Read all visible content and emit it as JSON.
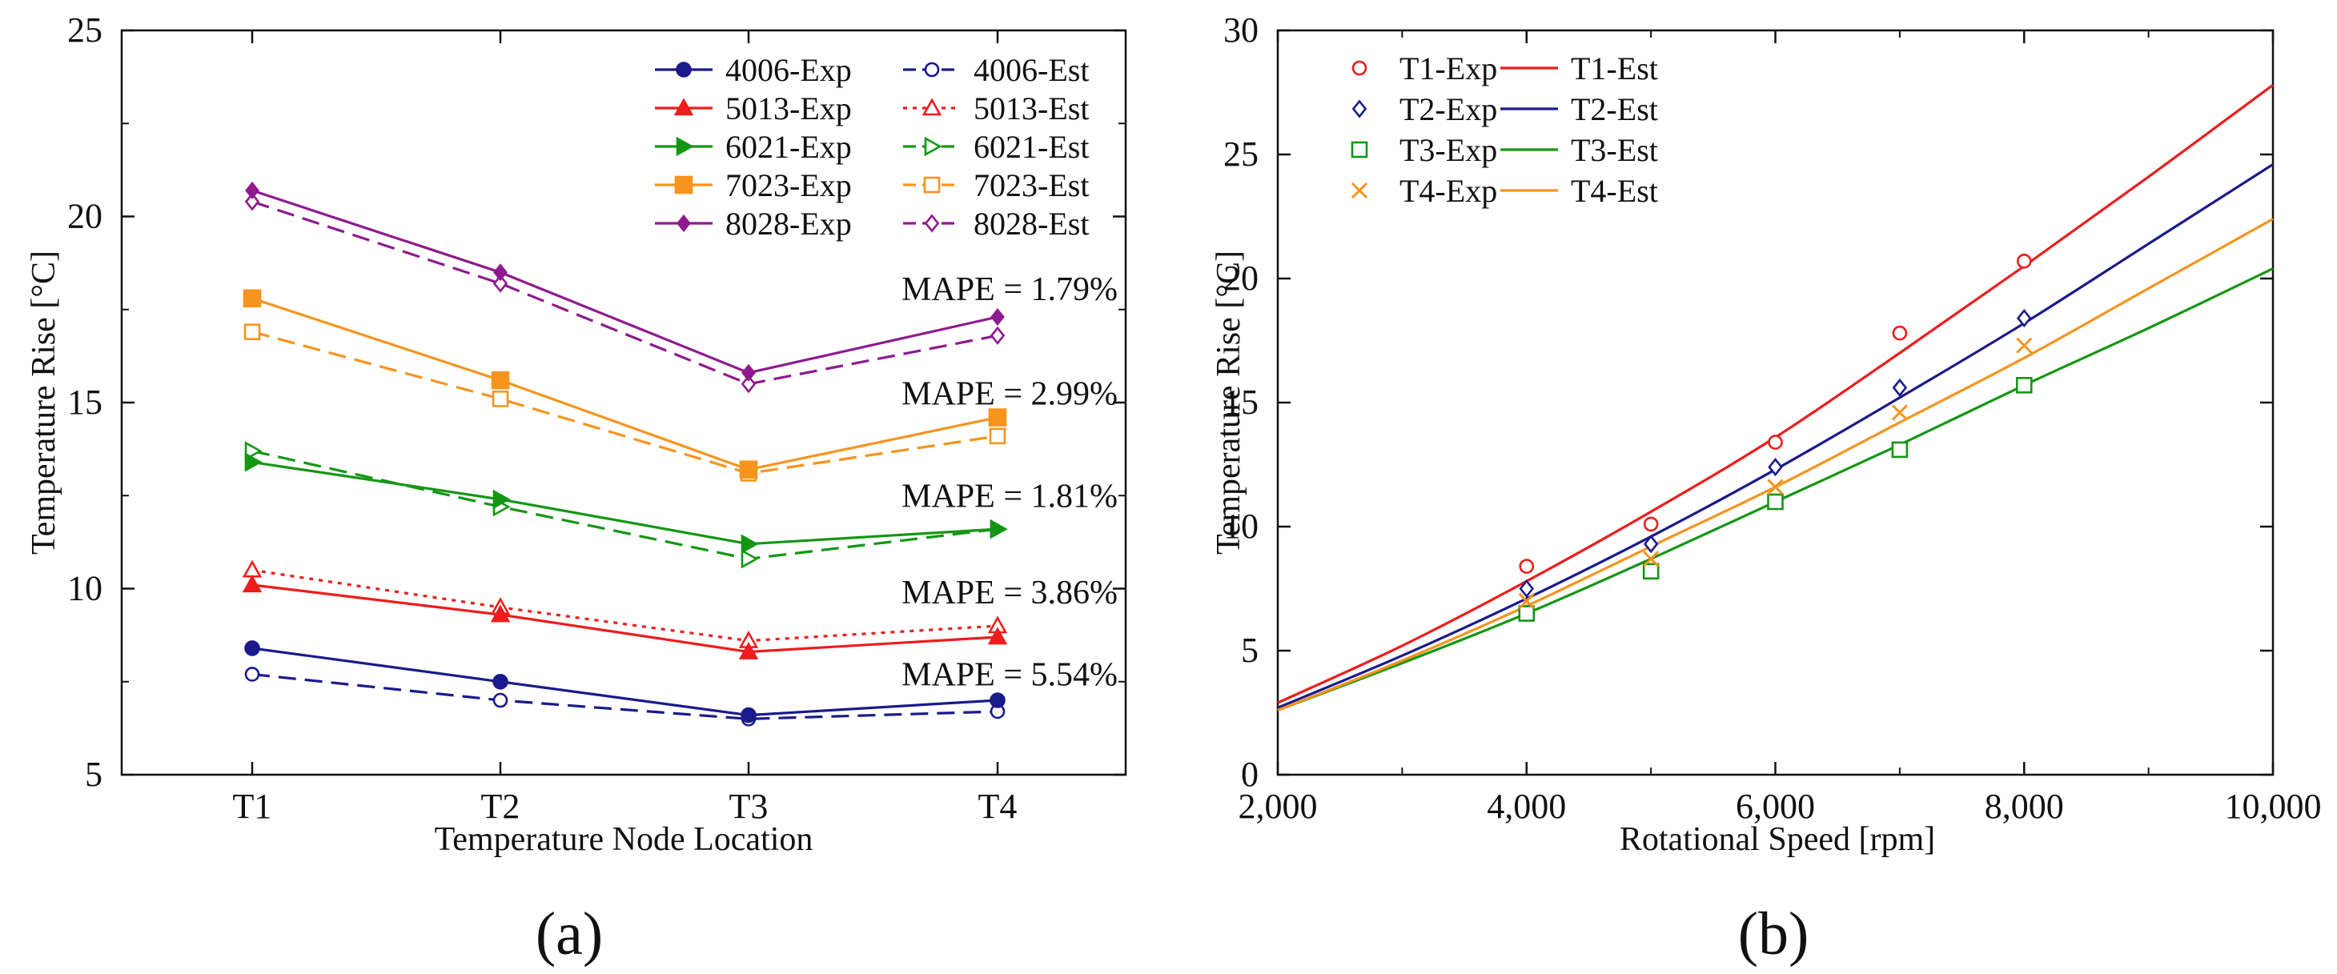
{
  "chart_data": [
    {
      "type": "line",
      "panel_label": "(a)",
      "xlabel": "Temperature Node Location",
      "ylabel": "Temperature Rise [°C]",
      "categories": [
        "T1",
        "T2",
        "T3",
        "T4"
      ],
      "ylim": [
        5,
        25
      ],
      "yticks": [
        "5",
        "10",
        "15",
        "20",
        "25"
      ],
      "grid": false,
      "legend_position": "top-right",
      "series": [
        {
          "name": "4006-Exp",
          "color": "#1a1a8c",
          "dash": "solid",
          "marker": "circle-filled",
          "values": [
            8.4,
            7.5,
            6.6,
            7.0
          ]
        },
        {
          "name": "5013-Exp",
          "color": "#ee1c1c",
          "dash": "solid",
          "marker": "triangle-filled",
          "values": [
            10.1,
            9.3,
            8.3,
            8.7
          ]
        },
        {
          "name": "6021-Exp",
          "color": "#149614",
          "dash": "solid",
          "marker": "arrow-filled",
          "values": [
            13.4,
            12.4,
            11.2,
            11.6
          ]
        },
        {
          "name": "7023-Exp",
          "color": "#f7941d",
          "dash": "solid",
          "marker": "square-filled",
          "values": [
            17.8,
            15.6,
            13.2,
            14.6
          ]
        },
        {
          "name": "8028-Exp",
          "color": "#8e1a8e",
          "dash": "solid",
          "marker": "diamond-filled",
          "values": [
            20.7,
            18.5,
            15.8,
            17.3
          ]
        },
        {
          "name": "4006-Est",
          "color": "#1a1a8c",
          "dash": "dashed",
          "marker": "circle-open",
          "values": [
            7.7,
            7.0,
            6.5,
            6.7
          ]
        },
        {
          "name": "5013-Est",
          "color": "#ee1c1c",
          "dash": "dotted",
          "marker": "triangle-open",
          "values": [
            10.5,
            9.5,
            8.6,
            9.0
          ]
        },
        {
          "name": "6021-Est",
          "color": "#149614",
          "dash": "dashed",
          "marker": "arrow-open",
          "values": [
            13.7,
            12.2,
            10.8,
            11.6
          ]
        },
        {
          "name": "7023-Est",
          "color": "#f7941d",
          "dash": "dashed",
          "marker": "square-open",
          "values": [
            16.9,
            15.1,
            13.1,
            14.1
          ]
        },
        {
          "name": "8028-Est",
          "color": "#8e1a8e",
          "dash": "dashed",
          "marker": "diamond-open",
          "values": [
            20.4,
            18.2,
            15.5,
            16.8
          ]
        }
      ],
      "legend_order": [
        "4006-Exp",
        "4006-Est",
        "5013-Exp",
        "5013-Est",
        "6021-Exp",
        "6021-Est",
        "7023-Exp",
        "7023-Est",
        "8028-Exp",
        "8028-Est"
      ],
      "annotations": [
        {
          "text": "MAPE = 1.79%",
          "y": 18.05
        },
        {
          "text": "MAPE = 2.99%",
          "y": 15.25
        },
        {
          "text": "MAPE = 1.81%",
          "y": 12.5
        },
        {
          "text": "MAPE = 3.86%",
          "y": 9.9
        },
        {
          "text": "MAPE = 5.54%",
          "y": 7.7
        }
      ]
    },
    {
      "type": "line",
      "panel_label": "(b)",
      "xlabel": "Rotational Speed [rpm]",
      "ylabel": "Temperature Rise [°C]",
      "xlim": [
        2000,
        10000
      ],
      "ylim": [
        0,
        30
      ],
      "xticks": [
        "2,000",
        "4,000",
        "6,000",
        "8,000",
        "10,000"
      ],
      "yticks": [
        "0",
        "5",
        "10",
        "15",
        "20",
        "25",
        "30"
      ],
      "grid": false,
      "legend_position": "top-left",
      "series": [
        {
          "name": "T1-Exp",
          "color": "#ee1c1c",
          "marker": "circle-open",
          "x": [
            4000,
            5000,
            6000,
            7000,
            8000
          ],
          "values": [
            8.4,
            10.1,
            13.4,
            17.8,
            20.7
          ]
        },
        {
          "name": "T2-Exp",
          "color": "#1a1a8c",
          "marker": "diamond-open",
          "x": [
            4000,
            5000,
            6000,
            7000,
            8000
          ],
          "values": [
            7.5,
            9.3,
            12.4,
            15.6,
            18.4
          ]
        },
        {
          "name": "T3-Exp",
          "color": "#149614",
          "marker": "square-open",
          "x": [
            4000,
            5000,
            6000,
            7000,
            8000
          ],
          "values": [
            6.5,
            8.2,
            11.0,
            13.1,
            15.7
          ]
        },
        {
          "name": "T4-Exp",
          "color": "#f7941d",
          "marker": "x",
          "x": [
            4000,
            5000,
            6000,
            7000,
            8000
          ],
          "values": [
            7.0,
            8.7,
            11.6,
            14.6,
            17.3
          ]
        },
        {
          "name": "T1-Est",
          "color": "#ee1c1c",
          "dash": "solid",
          "x": [
            2000,
            3000,
            4000,
            5000,
            6000,
            7000,
            8000,
            9000,
            10000
          ],
          "values": [
            2.9,
            5.2,
            7.8,
            10.6,
            13.6,
            17.0,
            20.5,
            24.1,
            27.8
          ]
        },
        {
          "name": "T2-Est",
          "color": "#1a1a8c",
          "dash": "solid",
          "x": [
            2000,
            3000,
            4000,
            5000,
            6000,
            7000,
            8000,
            9000,
            10000
          ],
          "values": [
            2.7,
            4.8,
            7.1,
            9.6,
            12.3,
            15.2,
            18.2,
            21.4,
            24.6
          ]
        },
        {
          "name": "T3-Est",
          "color": "#149614",
          "dash": "solid",
          "x": [
            2000,
            3000,
            4000,
            5000,
            6000,
            7000,
            8000,
            9000,
            10000
          ],
          "values": [
            2.6,
            4.5,
            6.5,
            8.7,
            11.0,
            13.3,
            15.7,
            18.0,
            20.4
          ]
        },
        {
          "name": "T4-Est",
          "color": "#f7941d",
          "dash": "solid",
          "x": [
            2000,
            3000,
            4000,
            5000,
            6000,
            7000,
            8000,
            9000,
            10000
          ],
          "values": [
            2.6,
            4.6,
            6.8,
            9.2,
            11.6,
            14.2,
            16.8,
            19.6,
            22.4
          ]
        }
      ],
      "legend_order": [
        "T1-Exp",
        "T1-Est",
        "T2-Exp",
        "T2-Est",
        "T3-Exp",
        "T3-Est",
        "T4-Exp",
        "T4-Est"
      ]
    }
  ]
}
